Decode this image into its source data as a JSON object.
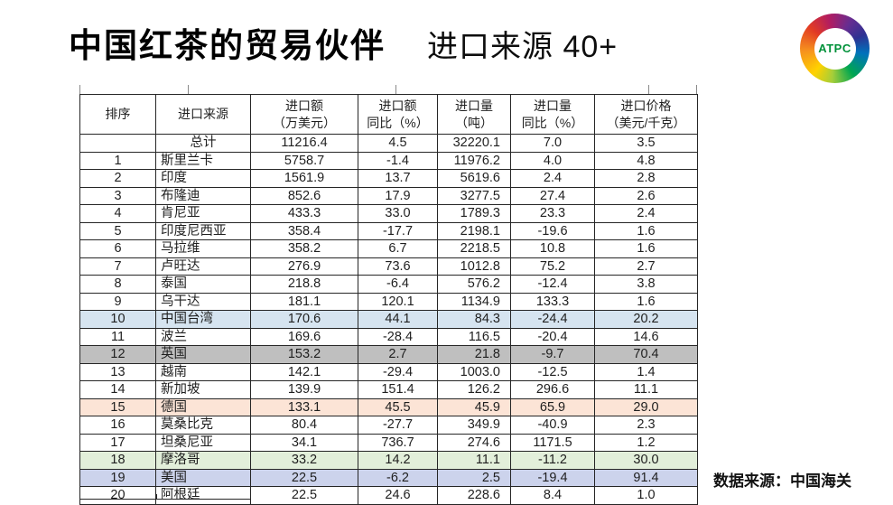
{
  "page": {
    "title": "中国红茶的贸易伙伴",
    "subtitle": "进口来源 40+",
    "source_note": "数据来源：中国海关",
    "logo_text": "ATPC"
  },
  "table": {
    "columns": [
      {
        "line1": "排序",
        "line2": ""
      },
      {
        "line1": "进口来源",
        "line2": ""
      },
      {
        "line1": "进口额",
        "line2": "（万美元）"
      },
      {
        "line1": "进口额",
        "line2": "同比（%）"
      },
      {
        "line1": "进口量",
        "line2": "（吨）"
      },
      {
        "line1": "进口量",
        "line2": "同比（%）"
      },
      {
        "line1": "进口价格",
        "line2": "（美元/千克）"
      }
    ],
    "highlight_colors": {
      "blue": "#d6e4f0",
      "gray": "#bfbfbf",
      "peach": "#fce4d6",
      "green": "#e2efda",
      "periwinkle": "#ccd3ec"
    },
    "rows": [
      {
        "is_total": true,
        "highlight": null,
        "cells": [
          "",
          "总计",
          "11216.4",
          "4.5",
          "32220.1",
          "7.0",
          "3.5"
        ]
      },
      {
        "is_total": false,
        "highlight": null,
        "cells": [
          "1",
          "斯里兰卡",
          "5758.7",
          "-1.4",
          "11976.2",
          "4.0",
          "4.8"
        ]
      },
      {
        "is_total": false,
        "highlight": null,
        "cells": [
          "2",
          "印度",
          "1561.9",
          "13.7",
          "5619.6",
          "2.4",
          "2.8"
        ]
      },
      {
        "is_total": false,
        "highlight": null,
        "cells": [
          "3",
          "布隆迪",
          "852.6",
          "17.9",
          "3277.5",
          "27.4",
          "2.6"
        ]
      },
      {
        "is_total": false,
        "highlight": null,
        "cells": [
          "4",
          "肯尼亚",
          "433.3",
          "33.0",
          "1789.3",
          "23.3",
          "2.4"
        ]
      },
      {
        "is_total": false,
        "highlight": null,
        "cells": [
          "5",
          "印度尼西亚",
          "358.4",
          "-17.7",
          "2198.1",
          "-19.6",
          "1.6"
        ]
      },
      {
        "is_total": false,
        "highlight": null,
        "cells": [
          "6",
          "马拉维",
          "358.2",
          "6.7",
          "2218.5",
          "10.8",
          "1.6"
        ]
      },
      {
        "is_total": false,
        "highlight": null,
        "cells": [
          "7",
          "卢旺达",
          "276.9",
          "73.6",
          "1012.8",
          "75.2",
          "2.7"
        ]
      },
      {
        "is_total": false,
        "highlight": null,
        "cells": [
          "8",
          "泰国",
          "218.8",
          "-6.4",
          "576.2",
          "-12.4",
          "3.8"
        ]
      },
      {
        "is_total": false,
        "highlight": null,
        "cells": [
          "9",
          "乌干达",
          "181.1",
          "120.1",
          "1134.9",
          "133.3",
          "1.6"
        ]
      },
      {
        "is_total": false,
        "highlight": "blue",
        "cells": [
          "10",
          "中国台湾",
          "170.6",
          "44.1",
          "84.3",
          "-24.4",
          "20.2"
        ]
      },
      {
        "is_total": false,
        "highlight": null,
        "cells": [
          "11",
          "波兰",
          "169.6",
          "-28.4",
          "116.5",
          "-20.4",
          "14.6"
        ]
      },
      {
        "is_total": false,
        "highlight": "gray",
        "cells": [
          "12",
          "英国",
          "153.2",
          "2.7",
          "21.8",
          "-9.7",
          "70.4"
        ]
      },
      {
        "is_total": false,
        "highlight": null,
        "cells": [
          "13",
          "越南",
          "142.1",
          "-29.4",
          "1003.0",
          "-12.5",
          "1.4"
        ]
      },
      {
        "is_total": false,
        "highlight": null,
        "cells": [
          "14",
          "新加坡",
          "139.9",
          "151.4",
          "126.2",
          "296.6",
          "11.1"
        ]
      },
      {
        "is_total": false,
        "highlight": "peach",
        "cells": [
          "15",
          "德国",
          "133.1",
          "45.5",
          "45.9",
          "65.9",
          "29.0"
        ]
      },
      {
        "is_total": false,
        "highlight": null,
        "cells": [
          "16",
          "莫桑比克",
          "80.4",
          "-27.7",
          "349.9",
          "-40.9",
          "2.3"
        ]
      },
      {
        "is_total": false,
        "highlight": null,
        "cells": [
          "17",
          "坦桑尼亚",
          "34.1",
          "736.7",
          "274.6",
          "1171.5",
          "1.2"
        ]
      },
      {
        "is_total": false,
        "highlight": "green",
        "cells": [
          "18",
          "摩洛哥",
          "33.2",
          "14.2",
          "11.1",
          "-11.2",
          "30.0"
        ]
      },
      {
        "is_total": false,
        "highlight": "periwinkle",
        "cells": [
          "19",
          "美国",
          "22.5",
          "-6.2",
          "2.5",
          "-19.4",
          "91.4"
        ]
      },
      {
        "is_total": false,
        "highlight": null,
        "cells": [
          "20",
          "阿根廷",
          "22.5",
          "24.6",
          "228.6",
          "8.4",
          "1.0"
        ]
      }
    ]
  }
}
